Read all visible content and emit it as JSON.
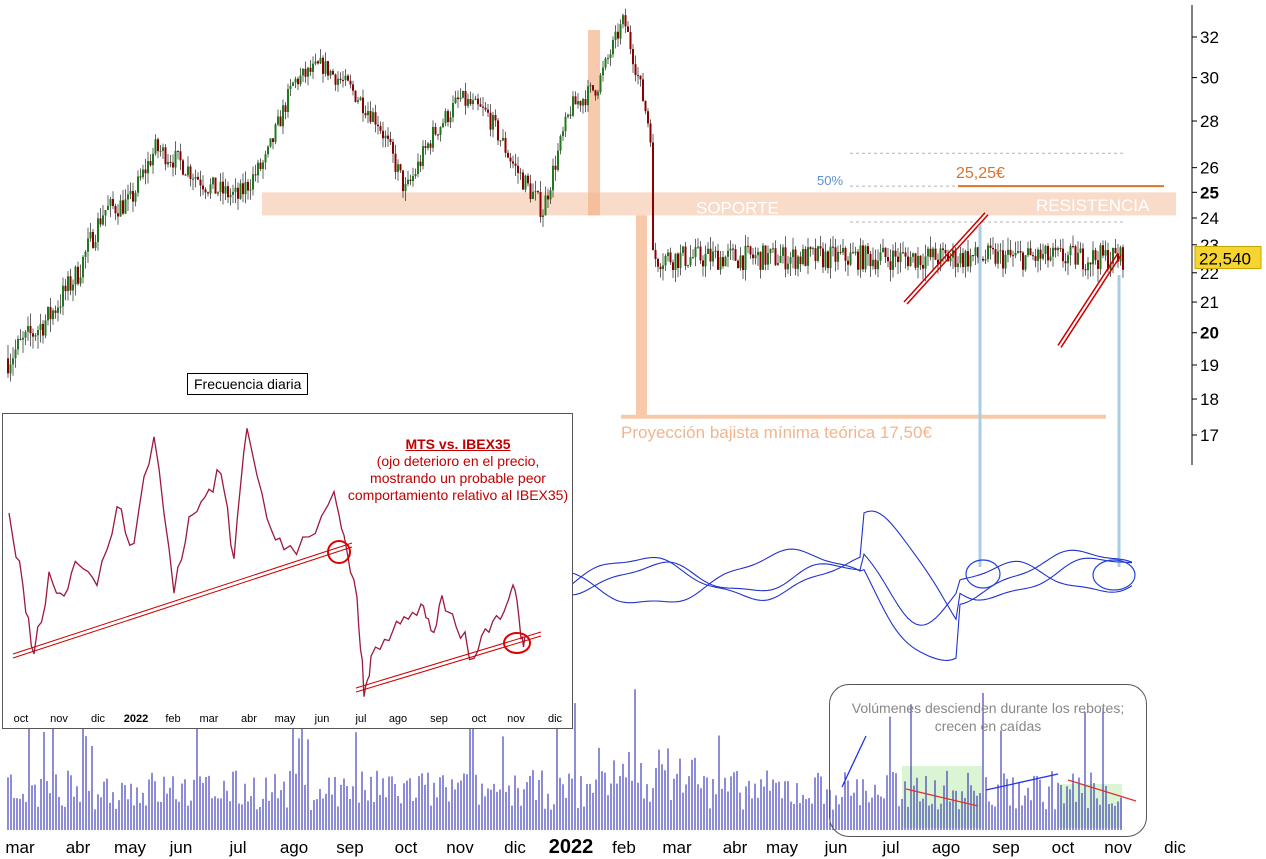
{
  "chart_data": {
    "type": "candlestick",
    "instrument": "MTS",
    "price_axis": {
      "ticks": [
        17,
        18,
        19,
        20,
        21,
        22,
        23,
        24,
        25,
        26,
        28,
        30,
        32
      ],
      "range": [
        16.3,
        33.2
      ]
    },
    "x_axis_labels": [
      "mar",
      "abr",
      "may",
      "jun",
      "jul",
      "ago",
      "sep",
      "oct",
      "nov",
      "dic",
      "2022",
      "feb",
      "mar",
      "abr",
      "may",
      "jun",
      "jul",
      "ago",
      "sep",
      "oct",
      "nov",
      "dic"
    ],
    "price_path": [
      [
        "mar",
        19.2
      ],
      [
        "mar",
        20.5
      ],
      [
        "abr",
        22.0
      ],
      [
        "abr",
        24.3
      ],
      [
        "may",
        24.6
      ],
      [
        "may",
        26.8
      ],
      [
        "jun",
        26.2
      ],
      [
        "jun",
        25.2
      ],
      [
        "jul",
        24.8
      ],
      [
        "jul",
        26.3
      ],
      [
        "ago",
        29.8
      ],
      [
        "ago",
        30.6
      ],
      [
        "sep",
        29.5
      ],
      [
        "sep",
        28.0
      ],
      [
        "oct",
        25.0
      ],
      [
        "oct",
        27.4
      ],
      [
        "nov",
        29.0
      ],
      [
        "nov",
        28.3
      ],
      [
        "dic",
        26.0
      ],
      [
        "dic",
        24.3
      ],
      [
        "2022",
        28.6
      ],
      [
        "2022",
        29.6
      ],
      [
        "feb",
        32.9
      ],
      [
        "feb",
        27.5
      ],
      [
        "mar",
        25.5
      ],
      [
        "mar",
        28.2
      ],
      [
        "abr",
        30.2
      ],
      [
        "abr",
        28.5
      ],
      [
        "may",
        30.3
      ],
      [
        "may",
        26.8
      ],
      [
        "jun",
        30.7
      ],
      [
        "jun",
        24.6
      ],
      [
        "jul",
        21.8
      ],
      [
        "jul",
        22.3
      ],
      [
        "ago",
        23.6
      ],
      [
        "ago",
        25.1
      ],
      [
        "sep",
        23.3
      ],
      [
        "sep",
        23.8
      ],
      [
        "oct",
        21.0
      ],
      [
        "oct",
        20.3
      ],
      [
        "nov",
        23.1
      ],
      [
        "nov",
        22.54
      ]
    ],
    "last_price": "22,540",
    "levels": {
      "soporte": {
        "label": "SOPORTE",
        "low": 24.1,
        "high": 25.0
      },
      "resistencia": {
        "label": "RESISTENCIA",
        "value": 25.25,
        "text": "25,25€"
      },
      "fib_50": {
        "label": "50%",
        "value": 25.25
      },
      "dashed_levels": [
        26.6,
        25.25,
        23.85
      ],
      "projection": {
        "label": "Proyección bajista mínima teórica 17,50€",
        "value": 17.5
      }
    },
    "frequency_label": "Frecuencia diaria",
    "inset": {
      "title": "MTS vs. IBEX35",
      "note": "(ojo deterioro en el precio, mostrando un probable peor comportamiento relativo al IBEX35)",
      "x_labels": [
        "oct",
        "nov",
        "dic",
        "2022",
        "feb",
        "mar",
        "abr",
        "may",
        "jun",
        "jul",
        "ago",
        "sep",
        "oct",
        "nov",
        "dic"
      ]
    },
    "volume_note": "Volúmenes descienden durante los rebotes; crecen en caídas",
    "colors": {
      "candle_up": "#1f7a1f",
      "candle_down": "#8b0000",
      "zone": "#f8d5bf",
      "resistance": "#d9732a",
      "oscillator": "#2233cc",
      "volume": "#1a1ab0",
      "relative": "#9c1a3c",
      "trendline": "#cc0000",
      "price_tag": "#f7d531"
    }
  }
}
